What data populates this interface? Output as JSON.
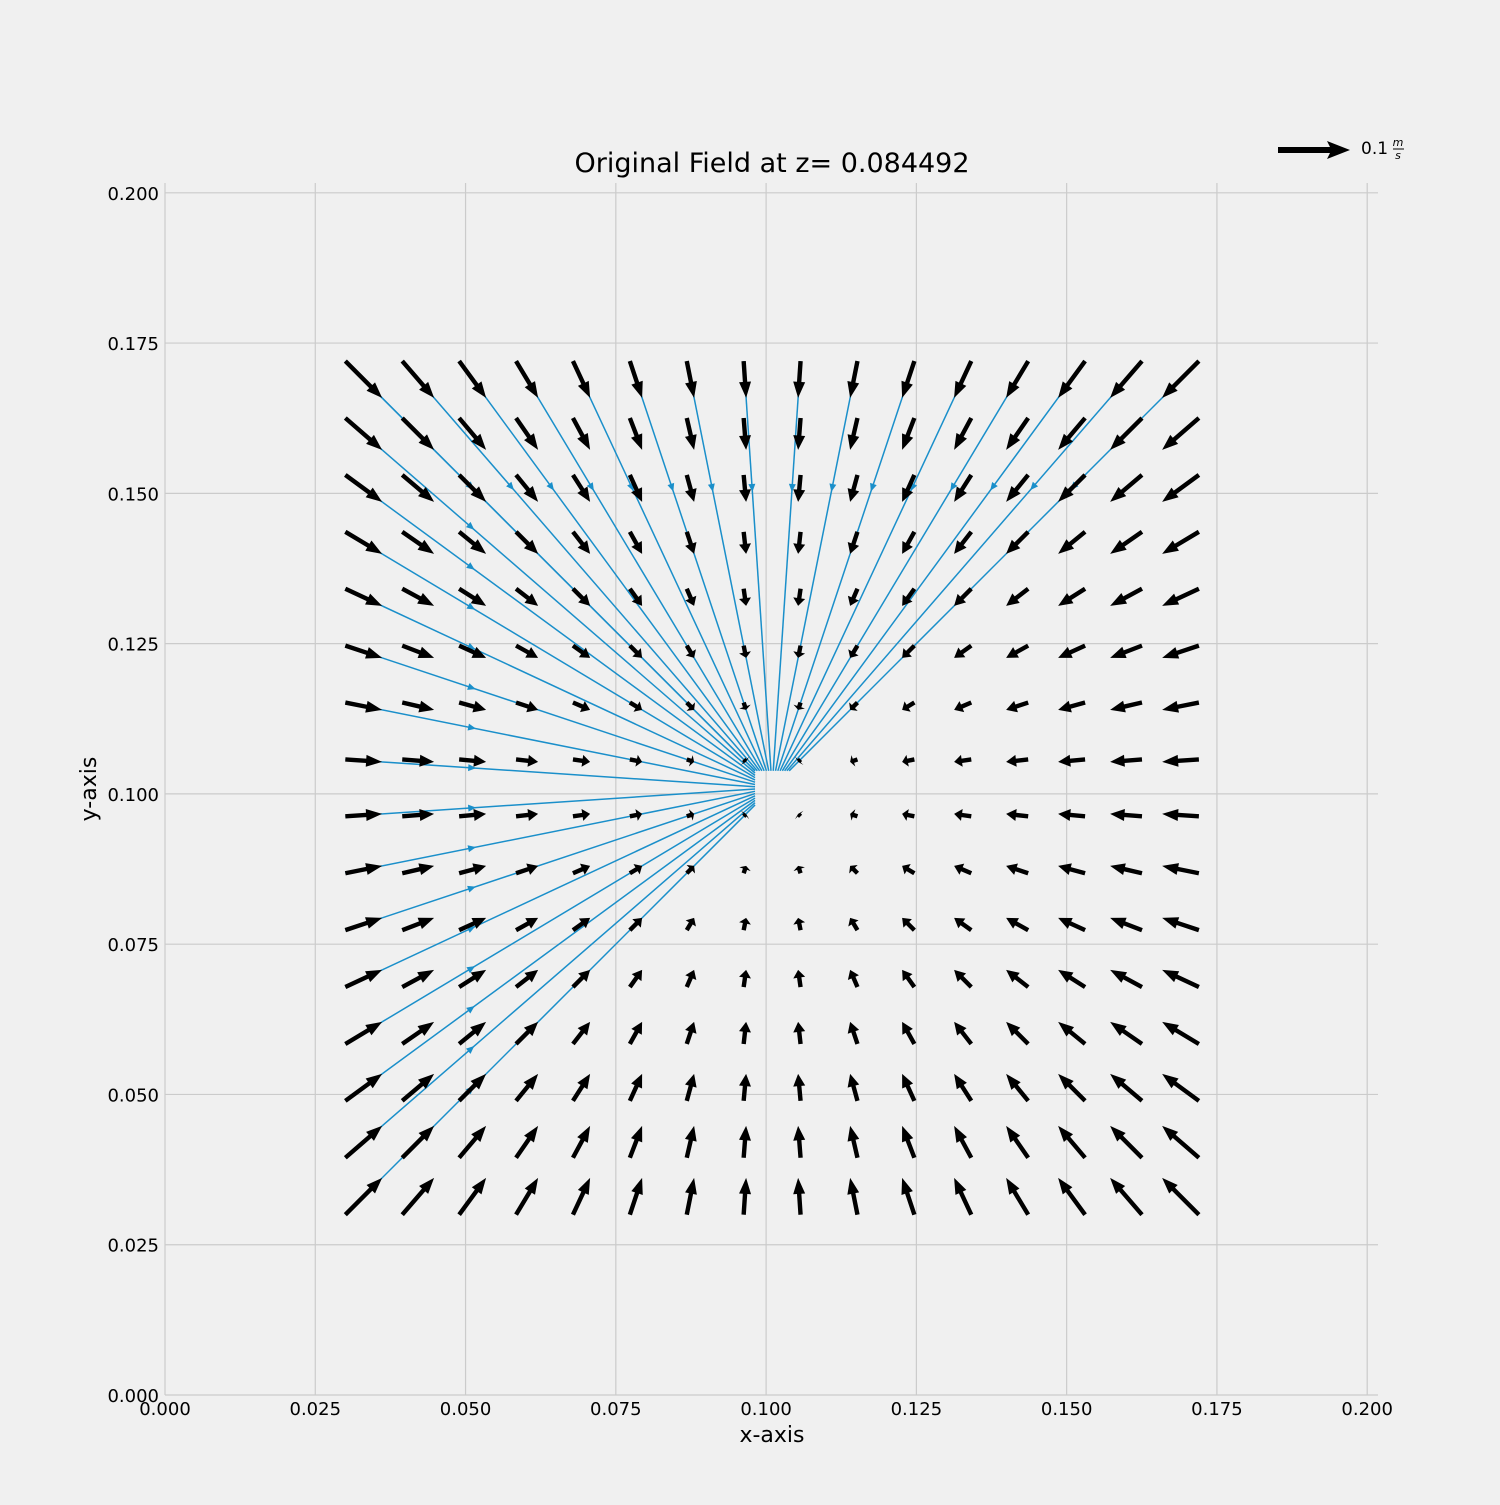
{
  "chart_data": {
    "type": "quiver",
    "title": "Original Field at z= 0.084492",
    "xlabel": "x-axis",
    "ylabel": "y-axis",
    "xlim": [
      0.0,
      0.202
    ],
    "ylim": [
      0.0,
      0.202
    ],
    "xticks": [
      "0.000",
      "0.025",
      "0.050",
      "0.075",
      "0.100",
      "0.125",
      "0.150",
      "0.175",
      "0.200"
    ],
    "yticks": [
      "0.000",
      "0.025",
      "0.050",
      "0.075",
      "0.100",
      "0.125",
      "0.150",
      "0.175",
      "0.200"
    ],
    "grid": true,
    "quiver_key": {
      "value": "0.1",
      "unit_num": "m",
      "unit_den": "s",
      "position": "top-right"
    },
    "field": {
      "description_center": [
        0.101,
        0.101
      ],
      "grid_x_range": [
        0.03,
        0.172
      ],
      "grid_y_range": [
        0.03,
        0.172
      ],
      "grid_n": 16,
      "arrow_color": "#000000",
      "streamline_color": "#1a8fca",
      "max_speed": 0.1
    }
  }
}
